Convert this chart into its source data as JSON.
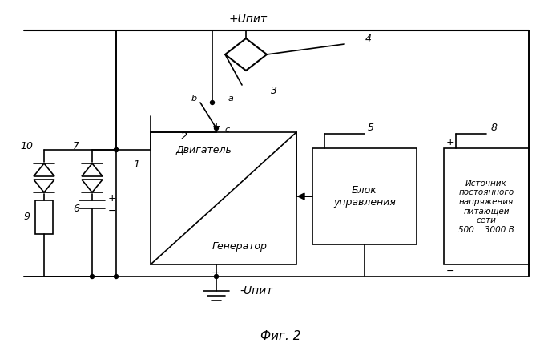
{
  "title": "Фиг. 2",
  "label_Upit_pos": "+Uпит",
  "label_Upit_neg": "-Uпит",
  "label_1": "1",
  "label_2": "2",
  "label_3": "3",
  "label_4": "4",
  "label_5": "5",
  "label_6": "6",
  "label_7": "7",
  "label_8": "8",
  "label_9": "9",
  "label_10": "10",
  "box1_top": "Двигатель",
  "box1_bot": "Генератор",
  "box2_text": "Блок\nуправления",
  "box3_text": "Источник\nпостоянного\nнапряжения\nпитающей\nсети\n500    3000 В",
  "label_a": "a",
  "label_b": "b",
  "label_c": "c",
  "bg_color": "#ffffff",
  "line_color": "#000000"
}
